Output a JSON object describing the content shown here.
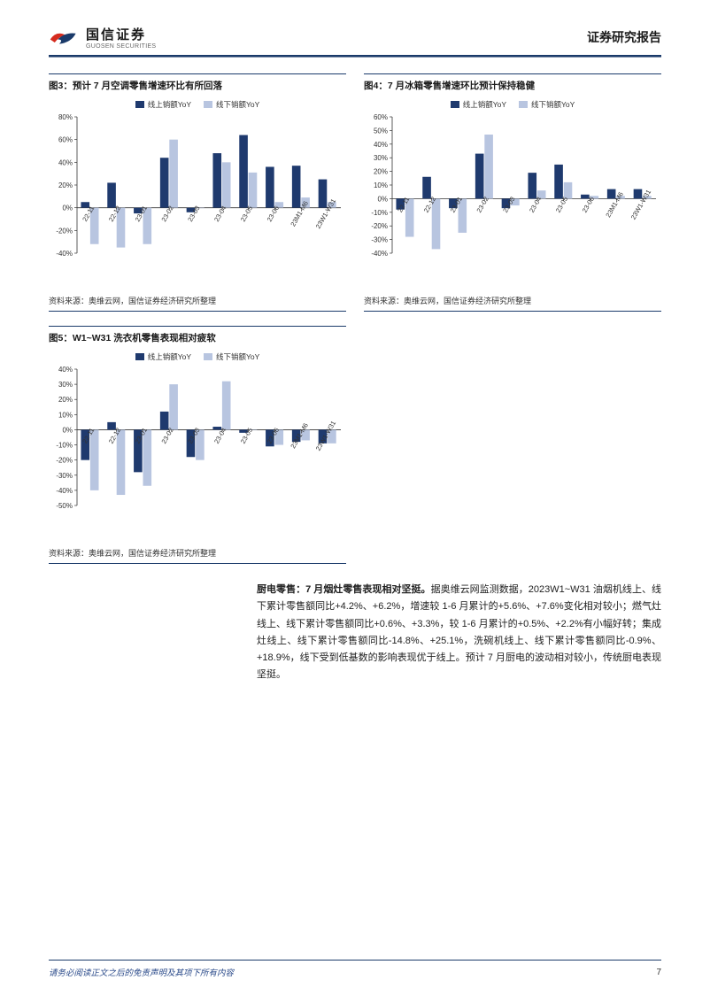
{
  "header": {
    "company_cn": "国信证券",
    "company_en": "GUOSEN SECURITIES",
    "report_title": "证券研究报告"
  },
  "charts": [
    {
      "id": "chart3",
      "title": "图3：预计 7 月空调零售增速环比有所回落",
      "source": "资料来源：奥维云网，国信证券经济研究所整理",
      "type": "bar",
      "legend": [
        {
          "label": "线上销额YoY",
          "color": "#1f3a6e"
        },
        {
          "label": "线下销额YoY",
          "color": "#b8c5e0"
        }
      ],
      "categories": [
        "22-11",
        "22-12",
        "23-01",
        "23-02",
        "23-03",
        "23-04",
        "23-05",
        "23-06",
        "23M1-M6",
        "23W1-W31"
      ],
      "series": [
        {
          "name": "online",
          "color": "#1f3a6e",
          "values": [
            5,
            22,
            -5,
            44,
            -4,
            48,
            64,
            36,
            37,
            25
          ]
        },
        {
          "name": "offline",
          "color": "#b8c5e0",
          "values": [
            -32,
            -35,
            -32,
            60,
            0,
            40,
            31,
            5,
            9,
            5
          ]
        }
      ],
      "ylim": [
        -40,
        80
      ],
      "ytick_step": 20,
      "y_suffix": "%",
      "background_color": "#ffffff",
      "axis_color": "#333333",
      "tick_fontsize": 8,
      "bar_group_width": 0.7
    },
    {
      "id": "chart4",
      "title": "图4：7 月冰箱零售增速环比预计保持稳健",
      "source": "资料来源：奥维云网，国信证券经济研究所整理",
      "type": "bar",
      "legend": [
        {
          "label": "线上销额YoY",
          "color": "#1f3a6e"
        },
        {
          "label": "线下销额YoY",
          "color": "#b8c5e0"
        }
      ],
      "categories": [
        "22-11",
        "22-12",
        "23-01",
        "23-02",
        "23-03",
        "23-04",
        "23-05",
        "23-06",
        "23M1-M6",
        "23W1-W31"
      ],
      "series": [
        {
          "name": "online",
          "color": "#1f3a6e",
          "values": [
            -8,
            16,
            -7,
            33,
            -7,
            19,
            25,
            3,
            7,
            7
          ]
        },
        {
          "name": "offline",
          "color": "#b8c5e0",
          "values": [
            -28,
            -37,
            -25,
            47,
            -5,
            6,
            12,
            2,
            2,
            2
          ]
        }
      ],
      "ylim": [
        -40,
        60
      ],
      "ytick_step": 10,
      "y_suffix": "%",
      "background_color": "#ffffff",
      "axis_color": "#333333",
      "tick_fontsize": 8,
      "bar_group_width": 0.7
    },
    {
      "id": "chart5",
      "title": "图5：W1~W31 洗衣机零售表现相对疲软",
      "source": "资料来源：奥维云网，国信证券经济研究所整理",
      "type": "bar",
      "legend": [
        {
          "label": "线上销额YoY",
          "color": "#1f3a6e"
        },
        {
          "label": "线下销额YoY",
          "color": "#b8c5e0"
        }
      ],
      "categories": [
        "22-11",
        "22-12",
        "23-01",
        "23-02",
        "23-03",
        "23-04",
        "23-05",
        "23-06",
        "23M1-M6",
        "23W1-W31"
      ],
      "series": [
        {
          "name": "online",
          "color": "#1f3a6e",
          "values": [
            -20,
            5,
            -28,
            12,
            -18,
            2,
            -2,
            -11,
            -8,
            -9
          ]
        },
        {
          "name": "offline",
          "color": "#b8c5e0",
          "values": [
            -40,
            -43,
            -37,
            30,
            -20,
            32,
            0,
            -10,
            -7,
            -9
          ]
        }
      ],
      "ylim": [
        -50,
        40
      ],
      "ytick_step": 10,
      "y_suffix": "%",
      "background_color": "#ffffff",
      "axis_color": "#333333",
      "tick_fontsize": 8,
      "bar_group_width": 0.7
    }
  ],
  "body": {
    "lead": "厨电零售：7 月烟灶零售表现相对坚挺。",
    "text": "据奥维云网监测数据，2023W1~W31 油烟机线上、线下累计零售额同比+4.2%、+6.2%，增速较 1-6 月累计的+5.6%、+7.6%变化相对较小；燃气灶线上、线下累计零售额同比+0.6%、+3.3%，较 1-6 月累计的+0.5%、+2.2%有小幅好转；集成灶线上、线下累计零售额同比-14.8%、+25.1%，洗碗机线上、线下累计零售额同比-0.9%、+18.9%，线下受到低基数的影响表现优于线上。预计 7 月厨电的波动相对较小，传统厨电表现坚挺。"
  },
  "footer": {
    "note": "请务必阅读正文之后的免责声明及其项下所有内容",
    "page": "7"
  },
  "colors": {
    "brand_dark": "#1a3a6a",
    "brand_red": "#d52b1e",
    "text": "#333333"
  }
}
